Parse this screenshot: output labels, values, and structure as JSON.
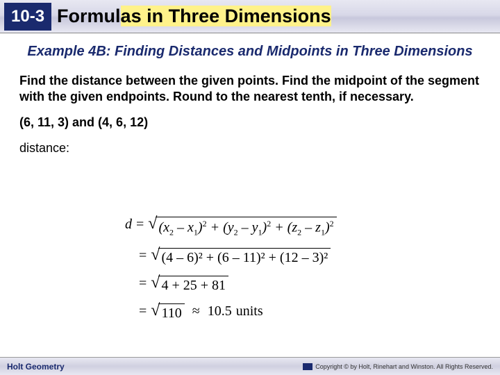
{
  "header": {
    "badge": "10-3",
    "title_prefix": "Formul",
    "title_hl": "as in Three Dimensions"
  },
  "example": {
    "title": "Example 4B: Finding Distances and Midpoints in Three Dimensions"
  },
  "instructions": "Find the distance between the given points. Find the midpoint of the segment with the given endpoints. Round to the nearest tenth, if necessary.",
  "points_text": "(6, 11, 3) and (4, 6, 12)",
  "distance_label": "distance:",
  "formula": {
    "line1_d": "d",
    "line1_rad_html": "(<i>x</i><sub>2</sub> – <i>x</i><sub>1</sub>)<sup>2</sup> + (<i>y</i><sub>2</sub> – <i>y</i><sub>1</sub>)<sup>2</sup> + (<i>z</i><sub>2</sub> – <i>z</i><sub>1</sub>)<sup>2</sup>",
    "line2_rad": "(4 – 6)² + (6 – 11)² + (12 – 3)²",
    "line3_rad": "4 + 25 + 81",
    "line4_rad": "110",
    "line4_result": "10.5",
    "units": "units"
  },
  "footer": {
    "left": "Holt Geometry",
    "right": "Copyright © by Holt, Rinehart and Winston. All Rights Reserved."
  },
  "colors": {
    "badge_bg": "#1a2a6e",
    "title_color": "#1a2a6e",
    "highlight": "#fff28a"
  }
}
